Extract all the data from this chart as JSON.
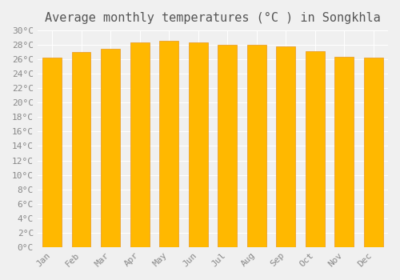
{
  "title": "Average monthly temperatures (°C ) in Songkhla",
  "months": [
    "Jan",
    "Feb",
    "Mar",
    "Apr",
    "May",
    "Jun",
    "Jul",
    "Aug",
    "Sep",
    "Oct",
    "Nov",
    "Dec"
  ],
  "values": [
    26.3,
    27.0,
    27.5,
    28.3,
    28.6,
    28.3,
    28.0,
    28.0,
    27.8,
    27.1,
    26.4,
    26.2
  ],
  "bar_color_top": "#FFA500",
  "bar_color_bottom": "#FFD700",
  "bar_edge_color": "#E8961E",
  "background_color": "#f0f0f0",
  "grid_color": "#ffffff",
  "ylim_min": 0,
  "ylim_max": 30,
  "ytick_step": 2,
  "title_fontsize": 11,
  "tick_fontsize": 8,
  "ylabel_suffix": "°C"
}
